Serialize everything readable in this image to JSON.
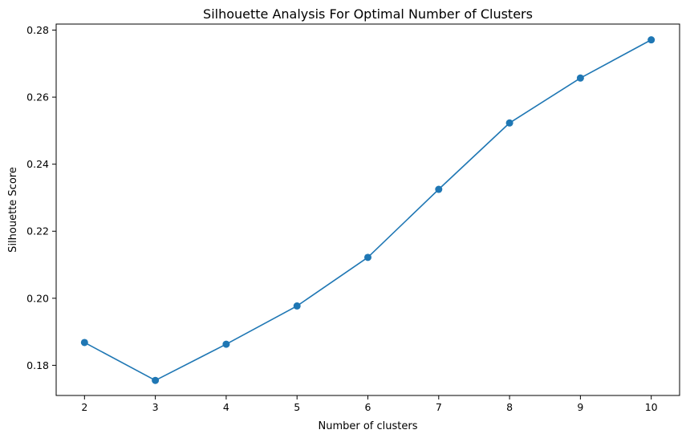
{
  "chart_data": {
    "type": "line",
    "title": "Silhouette Analysis For Optimal Number of Clusters",
    "xlabel": "Number of clusters",
    "ylabel": "Silhouette Score",
    "x": [
      2,
      3,
      4,
      5,
      6,
      7,
      8,
      9,
      10
    ],
    "series": [
      {
        "values": [
          0.1868,
          0.1755,
          0.1863,
          0.1977,
          0.2122,
          0.2325,
          0.2523,
          0.2657,
          0.2771
        ],
        "color": "#1f77b4",
        "marker": "circle"
      }
    ],
    "xlim": [
      1.6,
      10.4
    ],
    "ylim": [
      0.171,
      0.2818
    ],
    "xticks": [
      "2",
      "3",
      "4",
      "5",
      "6",
      "7",
      "8",
      "9",
      "10"
    ],
    "yticks": [
      "0.18",
      "0.20",
      "0.22",
      "0.24",
      "0.26",
      "0.28"
    ],
    "grid": false,
    "legend": "none"
  }
}
